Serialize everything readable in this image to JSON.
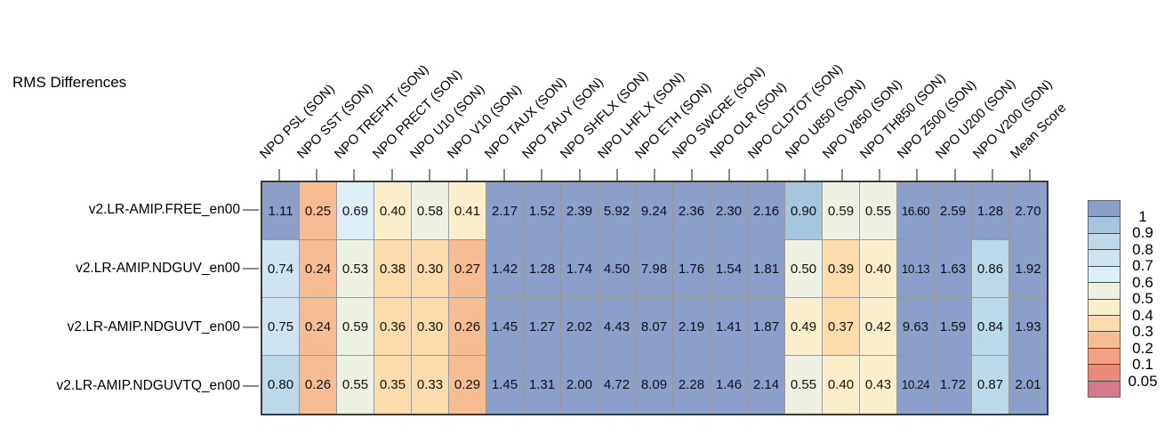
{
  "title": "RMS Differences",
  "chart_data": {
    "type": "heatmap",
    "title": "RMS Differences",
    "columns": [
      "NPO PSL (SON)",
      "NPO SST (SON)",
      "NPO TREFHT (SON)",
      "NPO PRECT (SON)",
      "NPO U10 (SON)",
      "NPO V10 (SON)",
      "NPO TAUX (SON)",
      "NPO TAUY (SON)",
      "NPO SHFLX (SON)",
      "NPO LHFLX (SON)",
      "NPO ETH (SON)",
      "NPO SWCRE (SON)",
      "NPO OLR (SON)",
      "NPO CLDTOT (SON)",
      "NPO U850 (SON)",
      "NPO V850 (SON)",
      "NPO TH850 (SON)",
      "NPO Z500 (SON)",
      "NPO U200 (SON)",
      "NPO V200 (SON)",
      "Mean Score"
    ],
    "rows": [
      {
        "label": "v2.LR-AMIP.FREE_en00",
        "values": [
          1.11,
          0.25,
          0.69,
          0.4,
          0.58,
          0.41,
          2.17,
          1.52,
          2.39,
          5.92,
          9.24,
          2.36,
          2.3,
          2.16,
          0.9,
          0.59,
          0.55,
          16.6,
          2.59,
          1.28,
          2.7
        ]
      },
      {
        "label": "v2.LR-AMIP.NDGUV_en00",
        "values": [
          0.74,
          0.24,
          0.53,
          0.38,
          0.3,
          0.27,
          1.42,
          1.28,
          1.74,
          4.5,
          7.98,
          1.76,
          1.54,
          1.81,
          0.5,
          0.39,
          0.4,
          10.13,
          1.63,
          0.86,
          1.92
        ]
      },
      {
        "label": "v2.LR-AMIP.NDGUVT_en00",
        "values": [
          0.75,
          0.24,
          0.59,
          0.36,
          0.3,
          0.26,
          1.45,
          1.27,
          2.02,
          4.43,
          8.07,
          2.19,
          1.41,
          1.87,
          0.49,
          0.37,
          0.42,
          9.63,
          1.59,
          0.84,
          1.93
        ]
      },
      {
        "label": "v2.LR-AMIP.NDGUVTQ_en00",
        "values": [
          0.8,
          0.26,
          0.55,
          0.35,
          0.33,
          0.29,
          1.45,
          1.31,
          2.0,
          4.72,
          8.09,
          2.28,
          1.46,
          2.14,
          0.55,
          0.4,
          0.43,
          10.24,
          1.72,
          0.87,
          2.01
        ]
      }
    ],
    "value_format_decimals": 2,
    "colorbar": {
      "position": "right",
      "tick_labels": [
        "1",
        "0.9",
        "0.8",
        "0.7",
        "0.6",
        "0.5",
        "0.4",
        "0.3",
        "0.2",
        "0.1",
        "0.05"
      ],
      "value_thresholds": [
        1,
        0.9,
        0.8,
        0.7,
        0.6,
        0.5,
        0.4,
        0.3,
        0.2,
        0.1,
        0.05
      ],
      "band_colors_high_to_low": [
        "#8C9FCA",
        "#A5C5DD",
        "#BCD9E9",
        "#CEE5F1",
        "#DEEEF6",
        "#EEF0E2",
        "#FAEECB",
        "#FBDCAA",
        "#F7BC92",
        "#F2A183",
        "#E98B7B",
        "#D5778D"
      ]
    },
    "layout": {
      "column_labels_rotation_deg": 45,
      "grid_lines": "on",
      "legend_position": "right"
    }
  },
  "style_colors": {
    "background": "#FFFFFF",
    "grid_line": "#999999",
    "outer_border": "#3B3B3B",
    "tick_mark": "#8A8A8A",
    "text": "#000000"
  }
}
